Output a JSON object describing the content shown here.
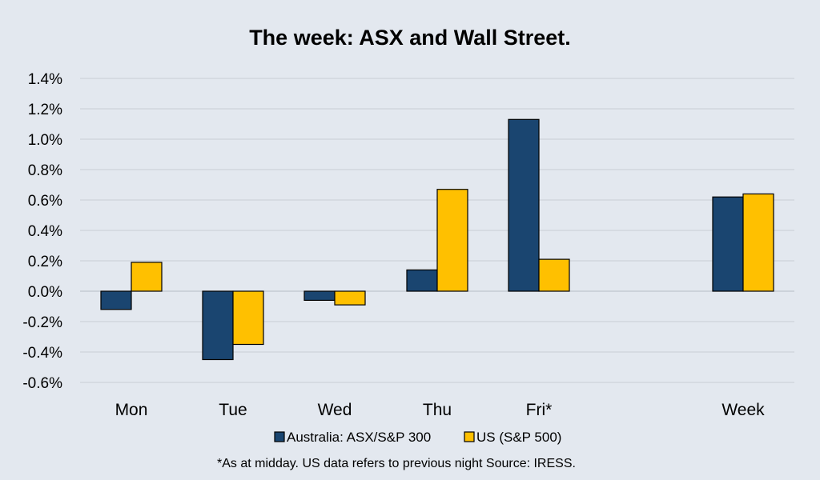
{
  "chart_data": {
    "type": "bar",
    "title": "The week:  ASX and Wall Street.",
    "categories": [
      "Mon",
      "Tue",
      "Wed",
      "Thu",
      "Fri*",
      "Week"
    ],
    "series": [
      {
        "name": "Australia: ASX/S&P 300",
        "color": "#1a4570",
        "values": [
          -0.12,
          -0.45,
          -0.06,
          0.14,
          1.13,
          0.62
        ]
      },
      {
        "name": "US (S&P 500)",
        "color": "#ffc000",
        "values": [
          0.19,
          -0.35,
          -0.09,
          0.67,
          0.21,
          0.64
        ]
      }
    ],
    "ylim": [
      -0.6,
      1.4
    ],
    "yticks": [
      "1.4%",
      "1.2%",
      "1.0%",
      "0.8%",
      "0.6%",
      "0.4%",
      "0.2%",
      "0.0%",
      "-0.2%",
      "-0.4%",
      "-0.6%"
    ],
    "ytick_values": [
      1.4,
      1.2,
      1.0,
      0.8,
      0.6,
      0.4,
      0.2,
      0.0,
      -0.2,
      -0.4,
      -0.6
    ],
    "xlabel": "",
    "ylabel": "",
    "grid": true,
    "legend_position": "bottom",
    "footnote": "*As at midday. US data refers to previous night  Source:  IRESS."
  }
}
